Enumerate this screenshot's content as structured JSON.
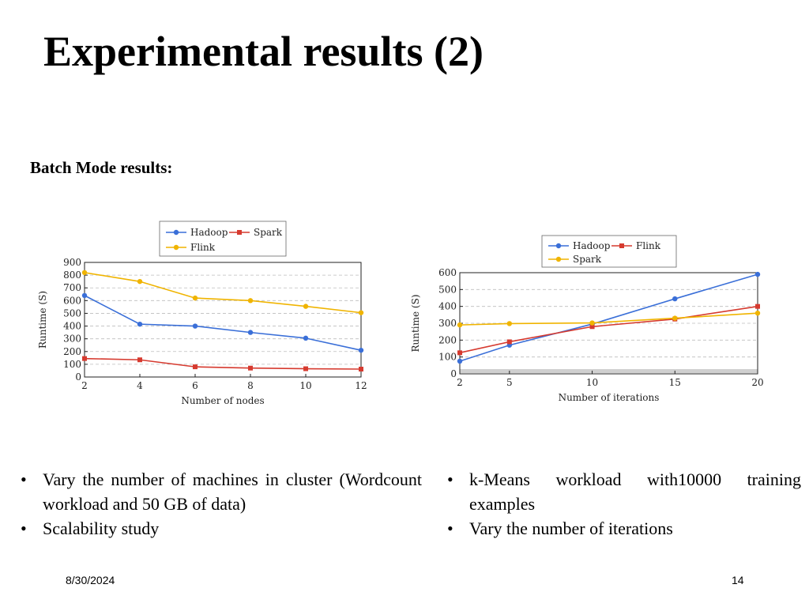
{
  "slide": {
    "title": "Experimental results (2)",
    "subtitle": "Batch Mode results:",
    "left_bullets": [
      "Vary the number of machines in cluster (Wordcount workload and 50 GB of data)",
      "Scalability study"
    ],
    "right_bullets": [
      "k-Means workload with10000 training examples",
      "Vary the number of iterations"
    ],
    "footer_date": "8/30/2024",
    "page_number": "14"
  },
  "colors": {
    "hadoop": "#3a6fd8",
    "spark_left": "#d63a2f",
    "flink_left": "#f0b400",
    "flink_right": "#d63a2f",
    "spark_right": "#f0b400"
  },
  "chart_data": [
    {
      "type": "line",
      "title": "",
      "xlabel": "Number of nodes",
      "ylabel": "Runtime (S)",
      "x": [
        2,
        4,
        6,
        8,
        10,
        12
      ],
      "xticks": [
        2,
        4,
        6,
        8,
        10,
        12
      ],
      "yticks": [
        0,
        100,
        200,
        300,
        400,
        500,
        600,
        700,
        800,
        900
      ],
      "xlim": [
        2,
        12
      ],
      "ylim": [
        0,
        900
      ],
      "grid": true,
      "legend": "top-center",
      "series": [
        {
          "name": "Hadoop",
          "color": "#3a6fd8",
          "marker": "circle",
          "values": [
            640,
            415,
            400,
            350,
            305,
            210
          ]
        },
        {
          "name": "Spark",
          "color": "#d63a2f",
          "marker": "square",
          "values": [
            145,
            135,
            80,
            70,
            65,
            62
          ]
        },
        {
          "name": "Flink",
          "color": "#f0b400",
          "marker": "circle",
          "values": [
            820,
            750,
            620,
            600,
            555,
            505
          ]
        }
      ]
    },
    {
      "type": "line",
      "title": "",
      "xlabel": "Number of iterations",
      "ylabel": "Runtime (S)",
      "x": [
        2,
        5,
        10,
        15,
        20
      ],
      "xticks": [
        2,
        5,
        10,
        15,
        20
      ],
      "yticks": [
        0,
        100,
        200,
        300,
        400,
        500,
        600
      ],
      "xlim": [
        2,
        20
      ],
      "ylim": [
        0,
        600
      ],
      "grid": true,
      "legend": "top-center",
      "series": [
        {
          "name": "Hadoop",
          "color": "#3a6fd8",
          "marker": "circle",
          "values": [
            75,
            170,
            295,
            445,
            590
          ]
        },
        {
          "name": "Flink",
          "color": "#d63a2f",
          "marker": "square",
          "values": [
            125,
            190,
            280,
            325,
            400
          ]
        },
        {
          "name": "Spark",
          "color": "#f0b400",
          "marker": "circle",
          "values": [
            290,
            298,
            302,
            330,
            360
          ]
        }
      ]
    }
  ]
}
